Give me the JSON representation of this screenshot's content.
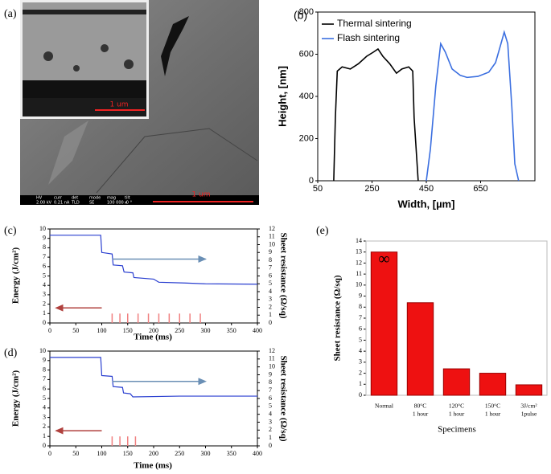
{
  "sem_image": {
    "label": "(a)",
    "inset_scale": "1 um",
    "scale": "1 um",
    "info_bar": [
      "HV",
      "curr",
      "det",
      "mode",
      "mag",
      "tilt"
    ],
    "info_values": [
      "2.00 kV",
      "0.21 nA",
      "TLD",
      "SE",
      "100 000 x",
      "-0 °"
    ]
  },
  "chart_data": [
    {
      "type": "line",
      "label": "(b)",
      "x_label": "Width, [µm]",
      "y_label": "Height, [nm]",
      "xlim": [
        50,
        850
      ],
      "xticks": [
        50,
        250,
        450,
        650
      ],
      "ylim": [
        0,
        800
      ],
      "yticks": [
        0,
        200,
        400,
        600,
        800
      ],
      "legend": "top-left",
      "series": [
        {
          "name": "Thermal sintering",
          "color": "#000000",
          "x": [
            109,
            115,
            122,
            140,
            170,
            200,
            230,
            255,
            272,
            290,
            315,
            340,
            360,
            385,
            400,
            405,
            420
          ],
          "values": [
            0,
            300,
            520,
            540,
            530,
            555,
            590,
            610,
            625,
            590,
            555,
            510,
            530,
            540,
            520,
            300,
            0
          ]
        },
        {
          "name": "Flash sintering",
          "color": "#3b6fe0",
          "x": [
            450,
            465,
            485,
            503,
            520,
            545,
            575,
            600,
            640,
            680,
            705,
            725,
            737,
            750,
            765,
            776,
            790
          ],
          "values": [
            0,
            150,
            450,
            650,
            610,
            530,
            500,
            490,
            495,
            515,
            560,
            650,
            705,
            650,
            350,
            80,
            0
          ]
        }
      ]
    },
    {
      "type": "line",
      "label": "(c)",
      "x_label": "Time (ms)",
      "y_label": "Energy (J/cm²)",
      "y2_label": "Sheet resistance (Ω/sq)",
      "xlim": [
        0,
        400
      ],
      "xticks": [
        0,
        50,
        100,
        150,
        200,
        250,
        300,
        350,
        400
      ],
      "ylim": [
        0,
        10
      ],
      "yticks": [
        0,
        1,
        2,
        3,
        4,
        5,
        6,
        7,
        8,
        9,
        10
      ],
      "y2lim": [
        0,
        12
      ],
      "y2ticks": [
        0,
        1,
        2,
        3,
        4,
        5,
        6,
        7,
        8,
        9,
        10,
        11,
        12
      ],
      "series": [
        {
          "style": "spike",
          "color": "#f08080",
          "x": [
            120,
            135,
            150,
            170,
            190,
            210,
            230,
            250,
            270,
            290
          ],
          "values": [
            1,
            1,
            1,
            1,
            1,
            1,
            1,
            1,
            1,
            1
          ]
        },
        {
          "style": "line",
          "axis": "y2",
          "color": "#2a3fd0",
          "x": [
            0,
            98,
            100,
            120,
            122,
            140,
            143,
            160,
            162,
            200,
            210,
            260,
            300,
            400
          ],
          "values": [
            11.2,
            11.2,
            9.0,
            8.8,
            7.4,
            7.3,
            6.5,
            6.4,
            5.8,
            5.6,
            5.2,
            5.1,
            5.0,
            4.95
          ]
        }
      ]
    },
    {
      "type": "line",
      "label": "(d)",
      "x_label": "Time (ms)",
      "y_label": "Energy (J/cm²)",
      "y2_label": "Sheet resistance (Ω/sq)",
      "xlim": [
        0,
        400
      ],
      "xticks": [
        0,
        50,
        100,
        150,
        200,
        250,
        300,
        350,
        400
      ],
      "ylim": [
        0,
        10
      ],
      "yticks": [
        0,
        1,
        2,
        3,
        4,
        5,
        6,
        7,
        8,
        9,
        10
      ],
      "y2lim": [
        0,
        12
      ],
      "y2ticks": [
        0,
        1,
        2,
        3,
        4,
        5,
        6,
        7,
        8,
        9,
        10,
        11,
        12
      ],
      "series": [
        {
          "style": "spike",
          "color": "#f08080",
          "x": [
            120,
            135,
            150,
            165
          ],
          "values": [
            1,
            1,
            1,
            1
          ]
        },
        {
          "style": "line",
          "axis": "y2",
          "color": "#2a3fd0",
          "x": [
            0,
            98,
            100,
            120,
            122,
            140,
            142,
            155,
            160,
            250,
            400
          ],
          "values": [
            11.2,
            11.2,
            8.9,
            8.8,
            7.5,
            7.4,
            6.7,
            6.6,
            6.2,
            6.3,
            6.3
          ]
        }
      ]
    },
    {
      "type": "bar",
      "label": "(e)",
      "x_label": "Specimens",
      "y_label": "Sheet resistance (Ω/sq)",
      "ylim": [
        0,
        14
      ],
      "yticks": [
        0,
        1,
        2,
        3,
        4,
        5,
        6,
        7,
        8,
        9,
        10,
        11,
        12,
        13,
        14
      ],
      "color": "#ee1111",
      "categories": [
        [
          "Normal"
        ],
        [
          "80°C",
          "1 hour"
        ],
        [
          "120°C",
          "1 hour"
        ],
        [
          "150°C",
          "1 hour"
        ],
        [
          "3J/cm²",
          "1pulse"
        ]
      ],
      "values": [
        13,
        8.4,
        2.4,
        2.0,
        0.95
      ],
      "annotation": "∞"
    }
  ]
}
